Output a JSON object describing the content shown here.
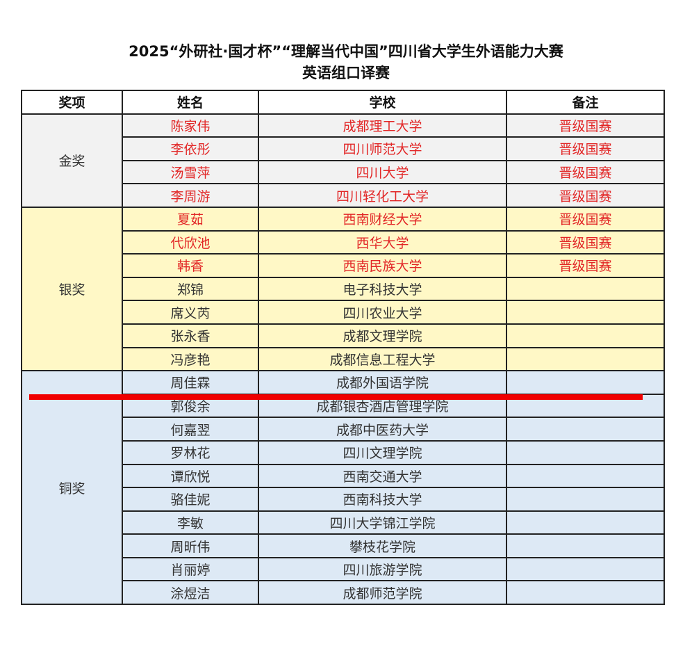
{
  "title_line1": "2025“外研社·国才杯”“理解当代中国”四川省大学生外语能力大赛",
  "title_line2": "英语组口译赛",
  "headers": {
    "award": "奖项",
    "name": "姓名",
    "school": "学校",
    "note": "备注"
  },
  "accent_color": "#e22626",
  "groups": [
    {
      "award": "金奖",
      "rows": [
        {
          "name": "陈家伟",
          "school": "成都理工大学",
          "note": "晋级国赛"
        },
        {
          "name": "李依彤",
          "school": "四川师范大学",
          "note": "晋级国赛"
        },
        {
          "name": "汤雪萍",
          "school": "四川大学",
          "note": "晋级国赛"
        },
        {
          "name": "李周游",
          "school": "四川轻化工大学",
          "note": "晋级国赛"
        }
      ]
    },
    {
      "award": "银奖",
      "rows": [
        {
          "name": "夏茹",
          "school": "西南财经大学",
          "note": "晋级国赛"
        },
        {
          "name": "代欣池",
          "school": "西华大学",
          "note": "晋级国赛"
        },
        {
          "name": "韩香",
          "school": "西南民族大学",
          "note": "晋级国赛"
        },
        {
          "name": "郑锦",
          "school": "电子科技大学",
          "note": ""
        },
        {
          "name": "席义芮",
          "school": "四川农业大学",
          "note": ""
        },
        {
          "name": "张永香",
          "school": "成都文理学院",
          "note": ""
        },
        {
          "name": "冯彦艳",
          "school": "成都信息工程大学",
          "note": ""
        }
      ]
    },
    {
      "award": "铜奖",
      "rows": [
        {
          "name": "周佳霖",
          "school": "成都外国语学院",
          "note": ""
        },
        {
          "name": "郭俊余",
          "school": "成都银杏酒店管理学院",
          "note": ""
        },
        {
          "name": "何嘉翌",
          "school": "成都中医药大学",
          "note": ""
        },
        {
          "name": "罗林花",
          "school": "四川文理学院",
          "note": ""
        },
        {
          "name": "谭欣悦",
          "school": "西南交通大学",
          "note": ""
        },
        {
          "name": "骆佳妮",
          "school": "西南科技大学",
          "note": ""
        },
        {
          "name": "李敏",
          "school": "四川大学锦江学院",
          "note": ""
        },
        {
          "name": "周昕伟",
          "school": "攀枝花学院",
          "note": ""
        },
        {
          "name": "肖丽婷",
          "school": "四川旅游学院",
          "note": ""
        },
        {
          "name": "涂煜洁",
          "school": "成都师范学院",
          "note": ""
        }
      ]
    }
  ]
}
